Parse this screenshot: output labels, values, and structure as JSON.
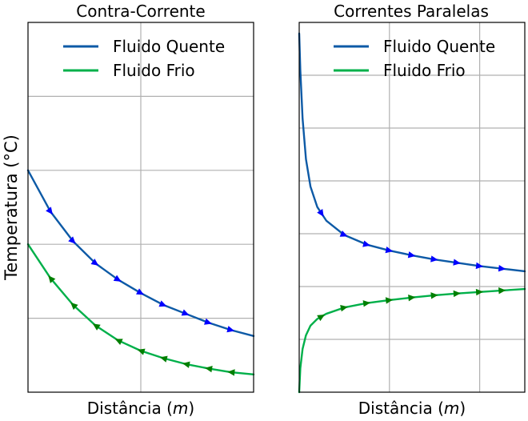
{
  "figure": {
    "ylabel": "Temperatura (°C)"
  },
  "colors": {
    "hot": "#0d5aa6",
    "cold": "#00b04a",
    "hot_arrow": "#0000ff",
    "cold_arrow": "#007f00",
    "grid": "#b0b0b0",
    "axes": "#000000"
  },
  "chart_data": [
    {
      "type": "line",
      "title": "Contra-Corrente",
      "xlabel_prefix": "Distância (",
      "xlabel_unit": "m",
      "xlabel_suffix": ")",
      "ylabel": "Temperatura (°C)",
      "legend_position": "top-right",
      "grid": true,
      "xlim": [
        0,
        1
      ],
      "ylim": [
        0,
        1
      ],
      "series": [
        {
          "name": "Fluido Quente",
          "role": "hot",
          "arrow_direction": "forward",
          "x": [
            0,
            0.1,
            0.2,
            0.3,
            0.4,
            0.5,
            0.6,
            0.7,
            0.8,
            0.9,
            1.0
          ],
          "y": [
            0.6,
            0.488,
            0.408,
            0.348,
            0.304,
            0.268,
            0.236,
            0.212,
            0.188,
            0.168,
            0.152
          ]
        },
        {
          "name": "Fluido Frio",
          "role": "cold",
          "arrow_direction": "backward",
          "x": [
            0,
            0.1,
            0.2,
            0.3,
            0.4,
            0.5,
            0.6,
            0.7,
            0.8,
            0.9,
            1.0
          ],
          "y": [
            0.4,
            0.308,
            0.236,
            0.18,
            0.14,
            0.112,
            0.092,
            0.076,
            0.064,
            0.054,
            0.048
          ]
        }
      ]
    },
    {
      "type": "line",
      "title": "Correntes Paralelas",
      "xlabel_prefix": "Distância (",
      "xlabel_unit": "m",
      "xlabel_suffix": ")",
      "legend_position": "top-right",
      "grid": true,
      "xlim": [
        0,
        1
      ],
      "ylim": [
        0,
        1
      ],
      "series": [
        {
          "name": "Fluido Quente",
          "role": "hot",
          "arrow_direction": "forward",
          "x": [
            0,
            0.005,
            0.015,
            0.03,
            0.05,
            0.08,
            0.12,
            0.2,
            0.3,
            0.4,
            0.5,
            0.6,
            0.7,
            0.8,
            0.9,
            1.0
          ],
          "y": [
            0.97,
            0.87,
            0.74,
            0.63,
            0.556,
            0.501,
            0.464,
            0.425,
            0.399,
            0.383,
            0.37,
            0.359,
            0.35,
            0.341,
            0.334,
            0.327
          ]
        },
        {
          "name": "Fluido Frio",
          "role": "cold",
          "arrow_direction": "forward",
          "x": [
            0,
            0.005,
            0.015,
            0.03,
            0.05,
            0.08,
            0.12,
            0.2,
            0.3,
            0.4,
            0.5,
            0.6,
            0.7,
            0.8,
            0.9,
            1.0
          ],
          "y": [
            0.0,
            0.065,
            0.117,
            0.154,
            0.18,
            0.198,
            0.212,
            0.229,
            0.241,
            0.249,
            0.256,
            0.262,
            0.267,
            0.271,
            0.275,
            0.279
          ]
        }
      ]
    }
  ]
}
